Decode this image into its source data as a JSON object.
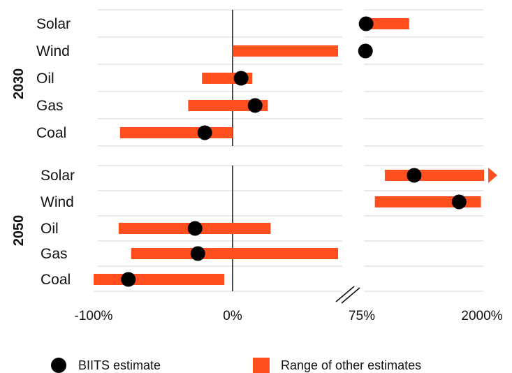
{
  "colors": {
    "range": "#ff4f1f",
    "estimate": "#000000",
    "grid": "#d6d6d6",
    "zero_line": "#111111"
  },
  "chart_data": {
    "type": "range-dot",
    "categories": [
      "Solar",
      "Wind",
      "Oil",
      "Gas",
      "Coal"
    ],
    "x_ticks": [
      "-100%",
      "0%",
      "75%",
      "2000%"
    ],
    "x_scale": "broken axis: linear -100% to 75% on the left segment; 75% to 2000% on the right segment",
    "legend": {
      "estimate_label": "BIITS estimate",
      "range_label": "Range of other estimates",
      "position": "bottom"
    },
    "panels": [
      {
        "label": "2030",
        "rows": [
          {
            "category": "Solar",
            "range": [
              90,
              800
            ],
            "estimate": 110
          },
          {
            "category": "Wind",
            "range": [
              0,
              75
            ],
            "estimate": 100
          },
          {
            "category": "Oil",
            "range": [
              -22,
              14
            ],
            "estimate": 6
          },
          {
            "category": "Gas",
            "range": [
              -32,
              25
            ],
            "estimate": 16
          },
          {
            "category": "Coal",
            "range": [
              -81,
              0
            ],
            "estimate": -20
          }
        ]
      },
      {
        "label": "2050",
        "rows": [
          {
            "category": "Solar",
            "range": [
              410,
              2000
            ],
            "estimate": 880,
            "arrow": true
          },
          {
            "category": "Wind",
            "range": [
              250,
              1950
            ],
            "estimate": 1600
          },
          {
            "category": "Oil",
            "range": [
              -82,
              27
            ],
            "estimate": -27
          },
          {
            "category": "Gas",
            "range": [
              -73,
              75
            ],
            "estimate": -25
          },
          {
            "category": "Coal",
            "range": [
              -100,
              -6
            ],
            "estimate": -75
          }
        ]
      }
    ]
  }
}
